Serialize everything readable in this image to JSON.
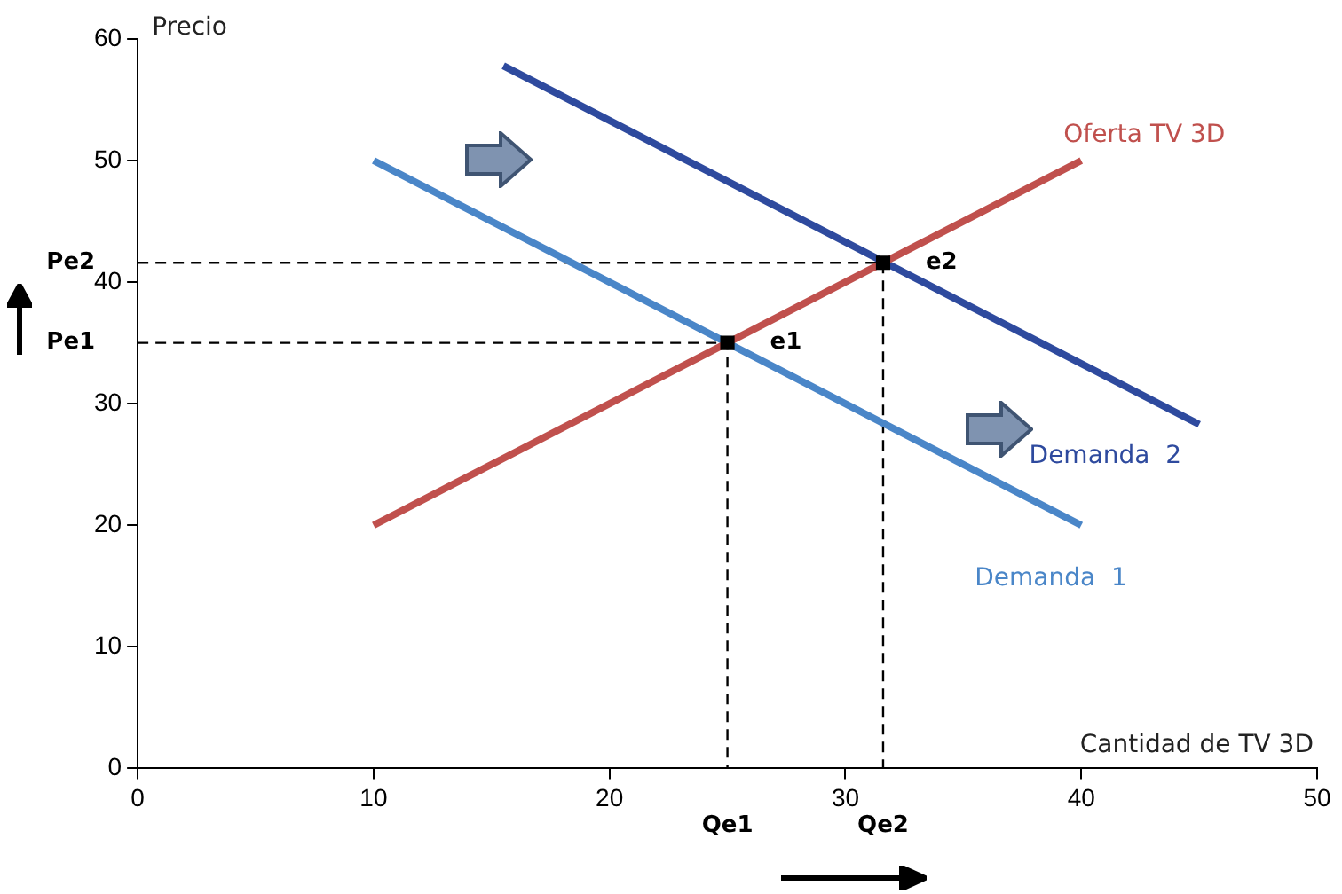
{
  "chart_data": {
    "type": "line",
    "xlabel": "Cantidad de TV 3D",
    "ylabel": "Precio",
    "xlim": [
      0,
      50
    ],
    "ylim": [
      0,
      60
    ],
    "xticks": [
      0,
      10,
      20,
      30,
      40,
      50
    ],
    "yticks": [
      0,
      10,
      20,
      30,
      40,
      50,
      60
    ],
    "grid": false,
    "legend": false,
    "series": [
      {
        "name": "Oferta TV 3D",
        "color": "#c0504d",
        "x": [
          10,
          40
        ],
        "values": [
          20,
          50
        ]
      },
      {
        "name": "Demanda  1",
        "color": "#4a86c8",
        "x": [
          10,
          40
        ],
        "values": [
          50,
          20
        ]
      },
      {
        "name": "Demanda  2",
        "color": "#2e4a9e",
        "x": [
          15.5,
          45
        ],
        "values": [
          57.8,
          28.3
        ]
      },
      {
        "type": "line",
        "line_style": "dashed",
        "color": "#000000",
        "x": [
          0,
          25,
          25
        ],
        "values": [
          35,
          35,
          0
        ]
      },
      {
        "type": "line",
        "line_style": "dashed",
        "color": "#000000",
        "x": [
          0,
          31.6,
          31.6
        ],
        "values": [
          41.6,
          41.6,
          0
        ]
      },
      {
        "type": "scatter",
        "marker": "square",
        "color": "#000000",
        "x": [
          25,
          31.6
        ],
        "values": [
          35,
          41.6
        ]
      }
    ],
    "annotations": [
      {
        "text": "e1",
        "x": 25,
        "y": 35
      },
      {
        "text": "e2",
        "x": 31.6,
        "y": 41.6
      },
      {
        "text": "Pe1",
        "x": 0,
        "y": 35
      },
      {
        "text": "Pe2",
        "x": 0,
        "y": 41.6
      },
      {
        "text": "Qe1",
        "x": 25,
        "y": 0
      },
      {
        "text": "Qe2",
        "x": 31.6,
        "y": 0
      }
    ]
  }
}
